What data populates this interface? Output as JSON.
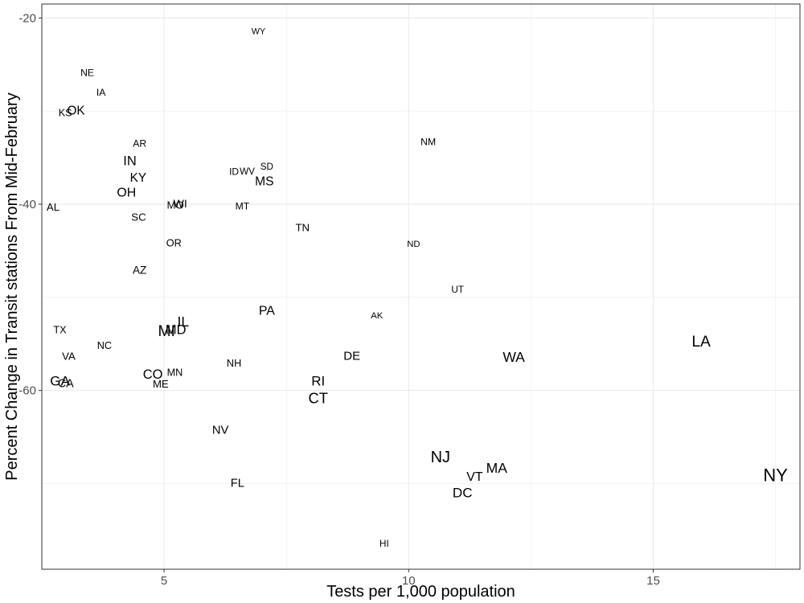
{
  "chart_data": {
    "type": "scatter",
    "title": "",
    "xlabel": "Tests per 1,000 population",
    "ylabel": "Percent Change in Transit stations From Mid-February",
    "xlim": [
      2.5,
      18.0
    ],
    "ylim": [
      -79.2,
      -18.5
    ],
    "x_ticks": [
      5,
      10,
      15
    ],
    "x_tick_labels": [
      "5",
      "10",
      "15"
    ],
    "y_ticks": [
      -20,
      -40,
      -60
    ],
    "y_tick_labels": [
      "-20",
      "-40",
      "-60"
    ],
    "x_minor": [
      7.5,
      12.5,
      17.5
    ],
    "y_minor": [
      -30,
      -50,
      -70
    ],
    "grid": true,
    "label_size_range": [
      8,
      22
    ],
    "size_metric_range": [
      0,
      40
    ],
    "points": [
      {
        "label": "WY",
        "x": 6.93,
        "y": -21.5,
        "size": 0.8
      },
      {
        "label": "NE",
        "x": 3.43,
        "y": -25.9,
        "size": 2
      },
      {
        "label": "IA",
        "x": 3.71,
        "y": -28.0,
        "size": 2
      },
      {
        "label": "KS",
        "x": 2.98,
        "y": -30.2,
        "size": 2.5
      },
      {
        "label": "OK",
        "x": 3.2,
        "y": -30.0,
        "size": 6
      },
      {
        "label": "AR",
        "x": 4.5,
        "y": -33.5,
        "size": 2
      },
      {
        "label": "NM",
        "x": 10.4,
        "y": -33.3,
        "size": 2
      },
      {
        "label": "IN",
        "x": 4.3,
        "y": -35.4,
        "size": 8
      },
      {
        "label": "SD",
        "x": 7.1,
        "y": -36.0,
        "size": 1.5
      },
      {
        "label": "ID",
        "x": 6.43,
        "y": -36.5,
        "size": 1.8
      },
      {
        "label": "WV",
        "x": 6.7,
        "y": -36.5,
        "size": 1.5
      },
      {
        "label": "KY",
        "x": 4.47,
        "y": -37.2,
        "size": 6
      },
      {
        "label": "MS",
        "x": 7.05,
        "y": -37.6,
        "size": 6.5
      },
      {
        "label": "OH",
        "x": 4.23,
        "y": -38.8,
        "size": 7
      },
      {
        "label": "MO",
        "x": 5.23,
        "y": -40.1,
        "size": 3
      },
      {
        "label": "WI",
        "x": 5.33,
        "y": -39.9,
        "size": 4
      },
      {
        "label": "MT",
        "x": 6.6,
        "y": -40.2,
        "size": 2
      },
      {
        "label": "AL",
        "x": 2.73,
        "y": -40.3,
        "size": 3
      },
      {
        "label": "SC",
        "x": 4.48,
        "y": -41.4,
        "size": 3
      },
      {
        "label": "TN",
        "x": 7.83,
        "y": -42.5,
        "size": 3
      },
      {
        "label": "OR",
        "x": 5.2,
        "y": -44.2,
        "size": 2.5
      },
      {
        "label": "ND",
        "x": 10.1,
        "y": -44.3,
        "size": 1.2
      },
      {
        "label": "AZ",
        "x": 4.5,
        "y": -47.1,
        "size": 3.5
      },
      {
        "label": "UT",
        "x": 11.0,
        "y": -49.2,
        "size": 1.5
      },
      {
        "label": "PA",
        "x": 7.1,
        "y": -51.5,
        "size": 7
      },
      {
        "label": "AK",
        "x": 9.35,
        "y": -52.0,
        "size": 1.2
      },
      {
        "label": "IL",
        "x": 5.39,
        "y": -52.6,
        "size": 10
      },
      {
        "label": "TX",
        "x": 2.87,
        "y": -53.5,
        "size": 2.5
      },
      {
        "label": "MD",
        "x": 5.24,
        "y": -53.5,
        "size": 8
      },
      {
        "label": "MI",
        "x": 5.05,
        "y": -53.7,
        "size": 14
      },
      {
        "label": "NC",
        "x": 3.78,
        "y": -55.2,
        "size": 2.5
      },
      {
        "label": "LA",
        "x": 15.98,
        "y": -54.8,
        "size": 14
      },
      {
        "label": "DE",
        "x": 8.84,
        "y": -56.3,
        "size": 5.5
      },
      {
        "label": "WA",
        "x": 12.15,
        "y": -56.4,
        "size": 10
      },
      {
        "label": "VA",
        "x": 3.05,
        "y": -56.3,
        "size": 3
      },
      {
        "label": "NH",
        "x": 6.43,
        "y": -57.1,
        "size": 2.5
      },
      {
        "label": "MN",
        "x": 5.22,
        "y": -58.1,
        "size": 2.5
      },
      {
        "label": "CO",
        "x": 4.77,
        "y": -58.3,
        "size": 8
      },
      {
        "label": "GA",
        "x": 2.87,
        "y": -59.0,
        "size": 9
      },
      {
        "label": "CA",
        "x": 2.99,
        "y": -59.3,
        "size": 4.5
      },
      {
        "label": "ME",
        "x": 4.93,
        "y": -59.3,
        "size": 3
      },
      {
        "label": "RI",
        "x": 8.15,
        "y": -59.0,
        "size": 9
      },
      {
        "label": "CT",
        "x": 8.15,
        "y": -60.8,
        "size": 12
      },
      {
        "label": "NV",
        "x": 6.15,
        "y": -64.3,
        "size": 5
      },
      {
        "label": "NJ",
        "x": 10.65,
        "y": -67.2,
        "size": 16
      },
      {
        "label": "MA",
        "x": 11.8,
        "y": -68.3,
        "size": 10
      },
      {
        "label": "VT",
        "x": 11.35,
        "y": -69.3,
        "size": 7
      },
      {
        "label": "NY",
        "x": 17.5,
        "y": -69.1,
        "size": 22
      },
      {
        "label": "FL",
        "x": 6.5,
        "y": -70.0,
        "size": 5
      },
      {
        "label": "DC",
        "x": 11.1,
        "y": -71.0,
        "size": 9
      },
      {
        "label": "HI",
        "x": 9.5,
        "y": -76.5,
        "size": 1.5
      }
    ]
  }
}
